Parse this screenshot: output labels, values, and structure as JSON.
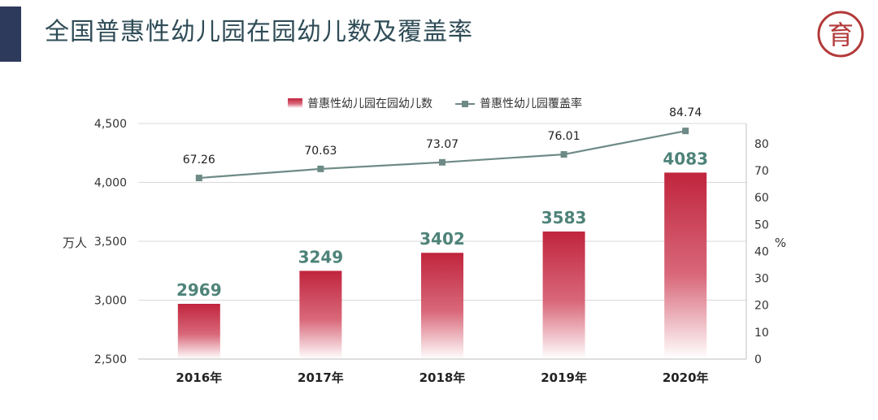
{
  "page": {
    "title": "全国普惠性幼儿园在园幼儿数及覆盖率",
    "logo": {
      "icon": "seal-logo-icon",
      "glyph": "育"
    }
  },
  "colors": {
    "accent_bar": "#2e3a5c",
    "title": "#2f4c57",
    "bar_top": "#c0253d",
    "bar_bottom": "#ffffff",
    "line": "#6e8a86",
    "bar_label": "#4e8379",
    "logo": "#b33a3a"
  },
  "chart_data": {
    "type": "bar",
    "categories": [
      "2016年",
      "2017年",
      "2018年",
      "2019年",
      "2020年"
    ],
    "series": [
      {
        "name": "普惠性幼儿园在园幼儿数",
        "type": "bar",
        "axis": "left",
        "values": [
          2969,
          3249,
          3402,
          3583,
          4083
        ]
      },
      {
        "name": "普惠性幼儿园覆盖率",
        "type": "line",
        "axis": "right",
        "values": [
          67.26,
          70.63,
          73.07,
          76.01,
          84.74
        ]
      }
    ],
    "y_left": {
      "label": "万人",
      "range": [
        2500,
        4500
      ],
      "ticks": [
        "2,500",
        "3,000",
        "3,500",
        "4,000",
        "4,500"
      ],
      "tick_values": [
        2500,
        3000,
        3500,
        4000,
        4500
      ]
    },
    "y_right": {
      "label": "%",
      "range": [
        0,
        87.5
      ],
      "ticks": [
        "0",
        "10",
        "20",
        "30",
        "40",
        "50",
        "60",
        "70",
        "80"
      ],
      "tick_values": [
        0,
        10,
        20,
        30,
        40,
        50,
        60,
        70,
        80
      ]
    },
    "grid": true,
    "legend_position": "top-center"
  }
}
